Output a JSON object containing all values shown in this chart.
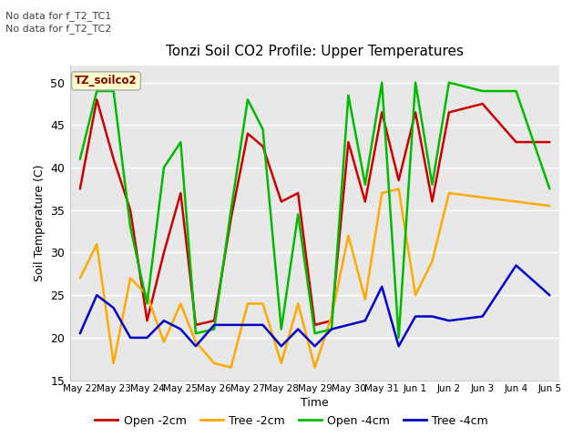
{
  "title": "Tonzi Soil CO2 Profile: Upper Temperatures",
  "ylabel": "Soil Temperature (C)",
  "xlabel": "Time",
  "annotation1": "No data for f_T2_TC1",
  "annotation2": "No data for f_T2_TC2",
  "legend_box_label": "TZ_soilco2",
  "ylim": [
    15,
    52
  ],
  "yticks": [
    15,
    20,
    25,
    30,
    35,
    40,
    45,
    50
  ],
  "x_labels": [
    "May 22",
    "May 23",
    "May 24",
    "May 25",
    "May 26",
    "May 27",
    "May 28",
    "May 29",
    "May 30",
    "May 31",
    "Jun 1",
    "Jun 2",
    "Jun 3",
    "Jun 4",
    "Jun 5"
  ],
  "colors": {
    "open_2cm": "#cc0000",
    "tree_2cm": "#ffaa00",
    "open_4cm": "#00bb00",
    "tree_4cm": "#0000cc"
  },
  "background_color": "#ffffff",
  "plot_bg_color": "#e8e8e8",
  "grid_color": "#ffffff",
  "open_2cm_x": [
    0,
    0.5,
    1.0,
    1.5,
    2.0,
    2.5,
    3.0,
    3.45,
    4.0,
    4.5,
    5.0,
    5.45,
    6.0,
    6.5,
    7.0,
    7.5,
    8.0,
    8.5,
    9.0,
    9.5,
    10.0,
    10.5,
    11.0,
    12.0,
    13.0,
    14.0
  ],
  "open_2cm_y": [
    37.5,
    48.0,
    41.0,
    35.0,
    22.0,
    30.0,
    37.0,
    21.5,
    22.0,
    34.0,
    44.0,
    42.5,
    36.0,
    37.0,
    21.5,
    22.0,
    43.0,
    36.0,
    46.5,
    38.5,
    46.5,
    36.0,
    46.5,
    47.5,
    43.0,
    43.0
  ],
  "tree_2cm_x": [
    0,
    0.5,
    1.0,
    1.5,
    2.0,
    2.5,
    3.0,
    3.45,
    4.0,
    4.5,
    5.0,
    5.45,
    6.0,
    6.5,
    7.0,
    7.5,
    8.0,
    8.5,
    9.0,
    9.5,
    10.0,
    10.5,
    11.0,
    12.0,
    13.0,
    14.0
  ],
  "tree_2cm_y": [
    27.0,
    31.0,
    17.0,
    27.0,
    25.0,
    19.5,
    24.0,
    19.5,
    17.0,
    16.5,
    24.0,
    24.0,
    17.0,
    24.0,
    16.5,
    22.5,
    32.0,
    24.5,
    37.0,
    37.5,
    25.0,
    29.0,
    37.0,
    36.5,
    36.0,
    35.5
  ],
  "open_4cm_x": [
    0,
    0.5,
    1.0,
    1.5,
    2.0,
    2.5,
    3.0,
    3.45,
    4.0,
    4.5,
    5.0,
    5.45,
    6.0,
    6.5,
    7.0,
    7.5,
    8.0,
    8.5,
    9.0,
    9.5,
    10.0,
    10.5,
    11.0,
    12.0,
    13.0,
    14.0
  ],
  "open_4cm_y": [
    41.0,
    49.0,
    49.0,
    33.0,
    24.0,
    40.0,
    43.0,
    20.5,
    21.0,
    35.0,
    48.0,
    44.5,
    21.0,
    34.5,
    20.5,
    21.0,
    48.5,
    38.0,
    50.0,
    20.0,
    50.0,
    38.0,
    50.0,
    49.0,
    49.0,
    37.5
  ],
  "tree_4cm_x": [
    0,
    0.5,
    1.0,
    1.5,
    2.0,
    2.5,
    3.0,
    3.45,
    4.0,
    4.5,
    5.0,
    5.45,
    6.0,
    6.5,
    7.0,
    7.5,
    8.0,
    8.5,
    9.0,
    9.5,
    10.0,
    10.5,
    11.0,
    12.0,
    13.0,
    14.0
  ],
  "tree_4cm_y": [
    20.5,
    25.0,
    23.5,
    20.0,
    20.0,
    22.0,
    21.0,
    19.0,
    21.5,
    21.5,
    21.5,
    21.5,
    19.0,
    21.0,
    19.0,
    21.0,
    21.5,
    22.0,
    26.0,
    19.0,
    22.5,
    22.5,
    22.0,
    22.5,
    28.5,
    25.0
  ]
}
